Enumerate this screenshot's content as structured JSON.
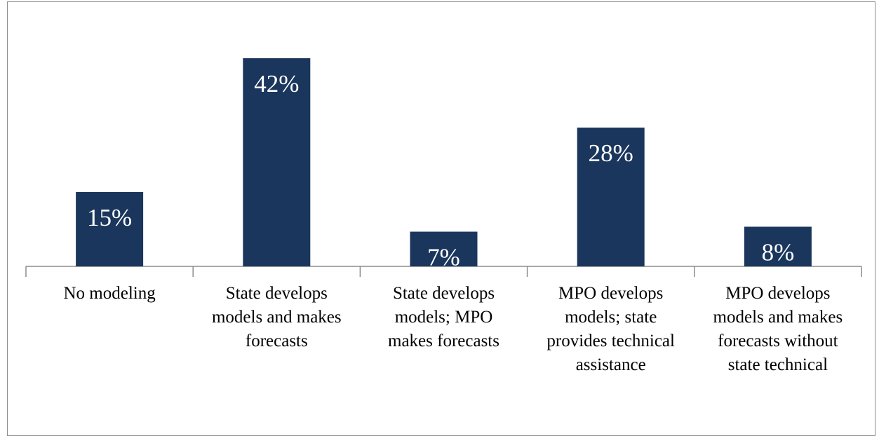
{
  "chart_data": {
    "type": "bar",
    "categories": [
      "No modeling",
      "State develops models and makes forecasts",
      "State develops models; MPO makes forecasts",
      "MPO develops models; state provides technical assistance",
      "MPO develops models and makes forecasts without state technical"
    ],
    "values": [
      15,
      42,
      7,
      28,
      8
    ],
    "value_labels": [
      "15%",
      "42%",
      "7%",
      "28%",
      "8%"
    ],
    "color": "#1b365d"
  }
}
